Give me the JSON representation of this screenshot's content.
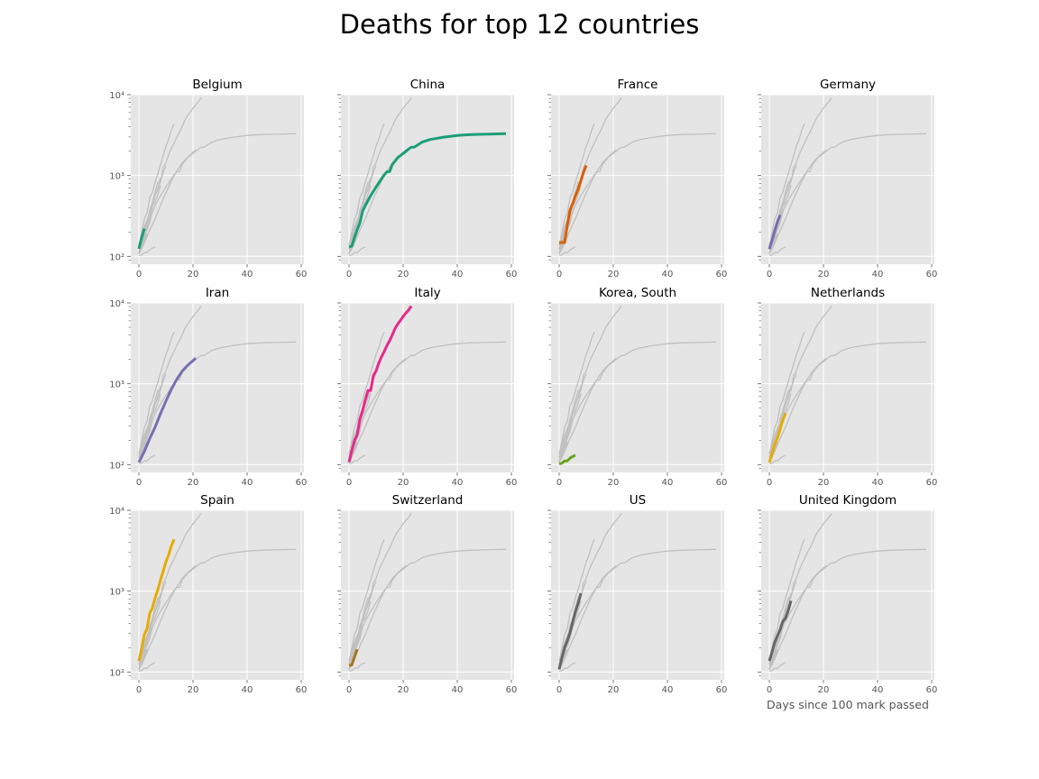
{
  "title": "Deaths for top 12 countries",
  "xlabel": "Days since 100 mark passed",
  "chart_data": [
    {
      "type": "line",
      "title": "Belgium",
      "color": "#1b9e77",
      "x": [
        0,
        1,
        2
      ],
      "values": [
        124,
        169,
        220
      ]
    },
    {
      "type": "line",
      "title": "China",
      "color": "#1b9e77",
      "x": [
        0,
        1,
        2,
        3,
        4,
        5,
        6,
        8,
        10,
        12,
        13,
        14,
        15,
        16,
        18,
        20,
        22,
        23,
        24,
        25,
        27,
        30,
        35,
        40,
        45,
        50,
        55,
        58
      ],
      "values": [
        131,
        133,
        171,
        213,
        259,
        361,
        425,
        563,
        722,
        908,
        1016,
        1113,
        1118,
        1371,
        1665,
        1868,
        2118,
        2236,
        2236,
        2345,
        2592,
        2788,
        2981,
        3136,
        3206,
        3242,
        3270,
        3285
      ]
    },
    {
      "type": "line",
      "title": "France",
      "color": "#d95f02",
      "x": [
        0,
        1,
        2,
        3,
        4,
        5,
        6,
        7,
        8,
        9,
        10
      ],
      "values": [
        148,
        148,
        148,
        243,
        372,
        450,
        562,
        674,
        860,
        1100,
        1331
      ]
    },
    {
      "type": "line",
      "title": "Germany",
      "color": "#7570b3",
      "x": [
        0,
        1,
        2,
        3,
        4
      ],
      "values": [
        123,
        157,
        206,
        267,
        326
      ]
    },
    {
      "type": "line",
      "title": "Iran",
      "color": "#7570b3",
      "x": [
        0,
        2,
        4,
        6,
        8,
        10,
        12,
        14,
        16,
        18,
        21
      ],
      "values": [
        107,
        145,
        210,
        291,
        429,
        611,
        853,
        1135,
        1433,
        1685,
        2077
      ]
    },
    {
      "type": "line",
      "title": "Italy",
      "color": "#e7298a",
      "x": [
        0,
        1,
        2,
        3,
        4,
        5,
        6,
        7,
        8,
        9,
        10,
        11,
        12,
        13,
        14,
        15,
        16,
        17,
        18,
        19,
        20,
        21,
        22,
        23
      ],
      "values": [
        107,
        148,
        197,
        233,
        366,
        463,
        631,
        827,
        827,
        1266,
        1441,
        1809,
        2158,
        2503,
        2978,
        3405,
        4032,
        4825,
        5476,
        6077,
        6820,
        7503,
        8165,
        9134
      ]
    },
    {
      "type": "line",
      "title": "Korea, South",
      "color": "#66a61e",
      "x": [
        0,
        1,
        2,
        3,
        4,
        5,
        6
      ],
      "values": [
        102,
        104,
        111,
        111,
        120,
        126,
        131
      ]
    },
    {
      "type": "line",
      "title": "Netherlands",
      "color": "#e6ab02",
      "x": [
        0,
        1,
        2,
        3,
        4,
        5,
        6
      ],
      "values": [
        106,
        136,
        179,
        213,
        276,
        356,
        434
      ]
    },
    {
      "type": "line",
      "title": "Spain",
      "color": "#e6ab02",
      "x": [
        0,
        1,
        2,
        3,
        4,
        5,
        6,
        7,
        8,
        9,
        10,
        11,
        12,
        13
      ],
      "values": [
        136,
        195,
        289,
        342,
        533,
        623,
        830,
        1043,
        1375,
        1772,
        2311,
        2808,
        3647,
        4365
      ]
    },
    {
      "type": "line",
      "title": "Switzerland",
      "color": "#a6761d",
      "x": [
        0,
        1,
        2,
        3
      ],
      "values": [
        120,
        122,
        153,
        191
      ]
    },
    {
      "type": "line",
      "title": "US",
      "color": "#666666",
      "x": [
        0,
        1,
        2,
        3,
        4,
        5,
        6,
        7,
        8
      ],
      "values": [
        108,
        150,
        200,
        244,
        307,
        417,
        557,
        706,
        942
      ]
    },
    {
      "type": "line",
      "title": "United Kingdom",
      "color": "#666666",
      "x": [
        0,
        1,
        2,
        3,
        4,
        5,
        6,
        7,
        8
      ],
      "values": [
        137,
        177,
        233,
        281,
        335,
        422,
        465,
        578,
        759
      ]
    }
  ],
  "axes": {
    "xlim": [
      -3,
      61
    ],
    "ylim": [
      80,
      10000
    ],
    "yscale": "log",
    "xticks": [
      0,
      20,
      40,
      60
    ],
    "yticks": [
      "10²",
      "10³",
      "10⁴"
    ],
    "background": "#e5e5e5",
    "grid": true,
    "grid_color": "#ffffff",
    "background_line_color": "#c0c0c0"
  }
}
